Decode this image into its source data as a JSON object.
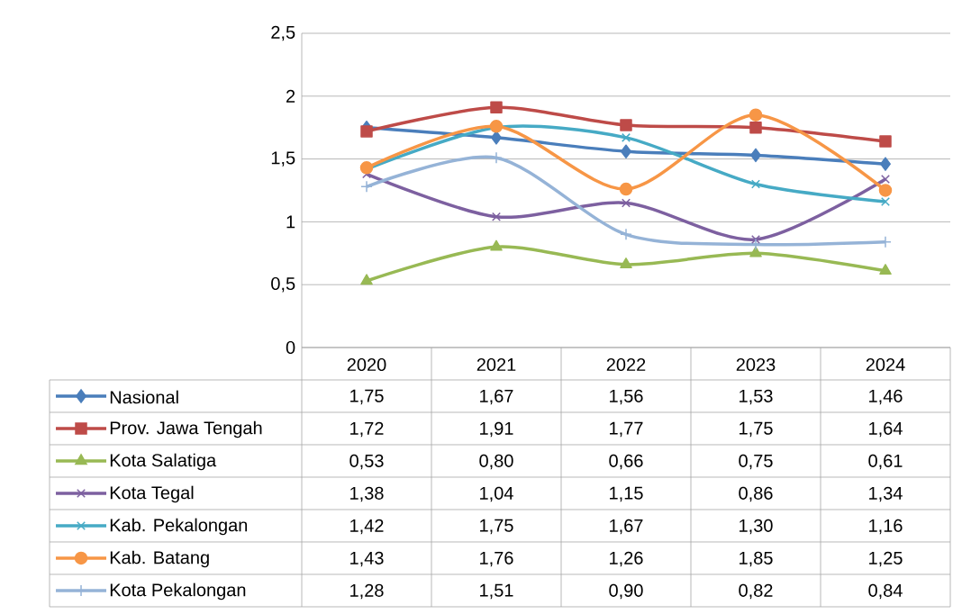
{
  "chart_data": {
    "type": "line",
    "categories": [
      "2020",
      "2021",
      "2022",
      "2023",
      "2024"
    ],
    "ylim": [
      0,
      2.5
    ],
    "yticks": [
      {
        "value": 0,
        "label": "0"
      },
      {
        "value": 0.5,
        "label": "0,5"
      },
      {
        "value": 1,
        "label": "1"
      },
      {
        "value": 1.5,
        "label": "1,5"
      },
      {
        "value": 2,
        "label": "2"
      },
      {
        "value": 2.5,
        "label": "2,5"
      }
    ],
    "grid": "y",
    "legend": "bottom",
    "line_style": "solid",
    "series": [
      {
        "name": "Nasional",
        "color": "#4a7ebb",
        "marker": "diamond",
        "values": [
          1.75,
          1.67,
          1.56,
          1.53,
          1.46
        ],
        "value_labels": [
          "1,75",
          "1,67",
          "1,56",
          "1,53",
          "1,46"
        ]
      },
      {
        "name": "Prov. Jawa Tengah",
        "color": "#be4b48",
        "marker": "square",
        "values": [
          1.72,
          1.91,
          1.77,
          1.75,
          1.64
        ],
        "value_labels": [
          "1,72",
          "1,91",
          "1,77",
          "1,75",
          "1,64"
        ]
      },
      {
        "name": "Kota Salatiga",
        "color": "#98b954",
        "marker": "triangle",
        "values": [
          0.53,
          0.8,
          0.66,
          0.75,
          0.61
        ],
        "value_labels": [
          "0,53",
          "0,80",
          "0,66",
          "0,75",
          "0,61"
        ]
      },
      {
        "name": "Kota Tegal",
        "color": "#7d60a0",
        "marker": "cross",
        "values": [
          1.38,
          1.04,
          1.15,
          0.86,
          1.34
        ],
        "value_labels": [
          "1,38",
          "1,04",
          "1,15",
          "0,86",
          "1,34"
        ]
      },
      {
        "name": "Kab. Pekalongan",
        "color": "#46aac5",
        "marker": "cross",
        "values": [
          1.42,
          1.75,
          1.67,
          1.3,
          1.16
        ],
        "value_labels": [
          "1,42",
          "1,75",
          "1,67",
          "1,30",
          "1,16"
        ]
      },
      {
        "name": "Kab. Batang",
        "color": "#f79646",
        "marker": "circle",
        "values": [
          1.43,
          1.76,
          1.26,
          1.85,
          1.25
        ],
        "value_labels": [
          "1,43",
          "1,76",
          "1,26",
          "1,85",
          "1,25"
        ]
      },
      {
        "name": "Kota Pekalongan",
        "color": "#95b3d7",
        "marker": "plus",
        "values": [
          1.28,
          1.51,
          0.9,
          0.82,
          0.84
        ],
        "value_labels": [
          "1,28",
          "1,51",
          "0,90",
          "0,82",
          "0,84"
        ]
      }
    ]
  }
}
